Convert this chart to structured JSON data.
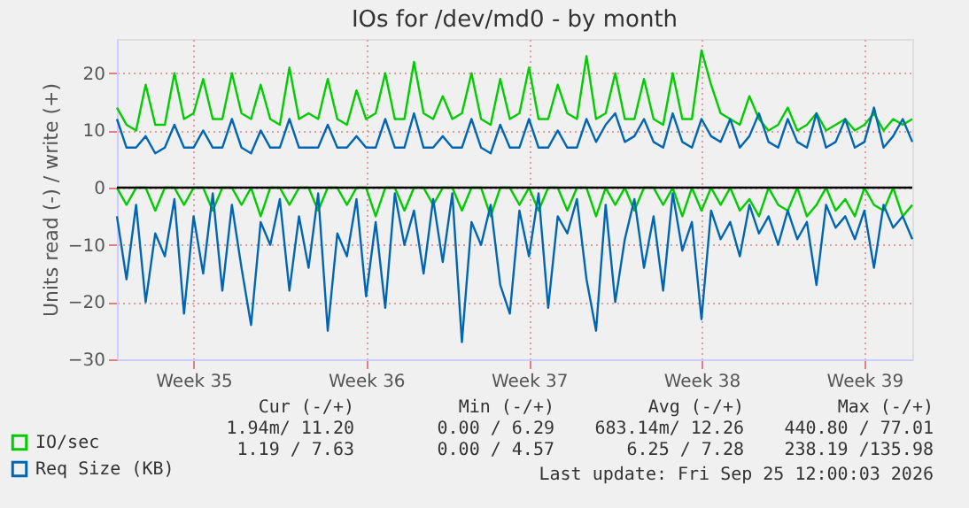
{
  "chart_data": {
    "type": "line",
    "title": "IOs for /dev/md0 - by month",
    "ylabel": "Units read (-) / write (+)",
    "categories": [
      null,
      null,
      null,
      null,
      null,
      null,
      null,
      null,
      "Week 35",
      null,
      null,
      null,
      null,
      null,
      null,
      null,
      null,
      null,
      null,
      null,
      null,
      null,
      null,
      null,
      null,
      null,
      "Week 36",
      null,
      null,
      null,
      null,
      null,
      null,
      null,
      null,
      null,
      null,
      null,
      null,
      null,
      null,
      null,
      null,
      "Week 37",
      null,
      null,
      null,
      null,
      null,
      null,
      null,
      null,
      null,
      null,
      null,
      null,
      null,
      null,
      null,
      null,
      null,
      "Week 38",
      null,
      null,
      null,
      null,
      null,
      null,
      null,
      null,
      null,
      null,
      null,
      null,
      null,
      null,
      null,
      null,
      "Week 39",
      null,
      null,
      null,
      null,
      null
    ],
    "series": [
      {
        "name": "IO/sec",
        "color": "#00cc00",
        "values": [
          14,
          11,
          10,
          18,
          11,
          11,
          20,
          12,
          13,
          19,
          12,
          12,
          20,
          13,
          12,
          18,
          12,
          11,
          21,
          12,
          13,
          12,
          19,
          12,
          11,
          17,
          12,
          13,
          20,
          12,
          12,
          22,
          13,
          12,
          16,
          12,
          13,
          20,
          12,
          11,
          19,
          12,
          13,
          21,
          12,
          12,
          18,
          13,
          12,
          23,
          12,
          13,
          20,
          12,
          12,
          19,
          12,
          11,
          20,
          12,
          12,
          24,
          18,
          13,
          12,
          11,
          16,
          12,
          10,
          11,
          14,
          10,
          11,
          13,
          10,
          11,
          12,
          10,
          11,
          13,
          10,
          12,
          11,
          12
        ]
      },
      {
        "color": "#00cc00",
        "values": [
          0,
          -3,
          0,
          0,
          -4,
          0,
          0,
          -3,
          0,
          0,
          -4,
          0,
          0,
          -3,
          0,
          -5,
          0,
          0,
          -3,
          0,
          0,
          -4,
          0,
          0,
          -3,
          0,
          0,
          -5,
          0,
          0,
          -4,
          0,
          0,
          -3,
          0,
          0,
          -4,
          0,
          0,
          -5,
          0,
          0,
          -3,
          0,
          -4,
          0,
          0,
          -4,
          0,
          0,
          -5,
          0,
          -3,
          0,
          -4,
          0,
          0,
          -3,
          0,
          -5,
          0,
          -4,
          0,
          -3,
          0,
          -4,
          -2,
          -5,
          0,
          -3,
          -4,
          0,
          -5,
          -3,
          0,
          -4,
          -2,
          -5,
          0,
          -3,
          -4,
          0,
          -5,
          -3
        ]
      },
      {
        "name": "Req Size (KB)",
        "color": "#0066b3",
        "values": [
          12,
          7,
          7,
          9,
          6,
          7,
          11,
          7,
          7,
          10,
          7,
          7,
          12,
          7,
          6,
          10,
          7,
          7,
          12,
          7,
          7,
          7,
          11,
          7,
          7,
          9,
          7,
          7,
          12,
          7,
          7,
          13,
          7,
          7,
          9,
          7,
          7,
          12,
          7,
          6,
          11,
          7,
          7,
          12,
          7,
          7,
          10,
          7,
          7,
          12,
          8,
          11,
          13,
          8,
          9,
          12,
          8,
          7,
          13,
          8,
          7,
          12,
          9,
          8,
          12,
          7,
          9,
          13,
          8,
          7,
          12,
          8,
          7,
          13,
          7,
          8,
          12,
          7,
          8,
          14,
          7,
          9,
          12,
          8
        ]
      },
      {
        "color": "#0066b3",
        "values": [
          -5,
          -16,
          -3,
          -20,
          -8,
          -12,
          -2,
          -22,
          -5,
          -15,
          -1,
          -18,
          -3,
          -14,
          -24,
          -6,
          -10,
          -2,
          -18,
          -5,
          -14,
          -1,
          -25,
          -8,
          -12,
          -2,
          -19,
          -6,
          -21,
          -1,
          -10,
          -4,
          -15,
          -2,
          -13,
          -1,
          -27,
          -6,
          -10,
          -3,
          -17,
          -22,
          -4,
          -12,
          -1,
          -21,
          -5,
          -8,
          -2,
          -16,
          -25,
          -3,
          -20,
          -9,
          -2,
          -14,
          -5,
          -18,
          -1,
          -11,
          -6,
          -23,
          -4,
          -9,
          -6,
          -12,
          -3,
          -8,
          -5,
          -10,
          -4,
          -9,
          -6,
          -17,
          -3,
          -7,
          -5,
          -9,
          -4,
          -14,
          -3,
          -7,
          -5,
          -9
        ]
      }
    ],
    "ylim": [
      -30,
      26
    ],
    "yticks": [
      -30,
      -20,
      -10,
      0,
      10,
      20
    ],
    "ref_lines": [
      {
        "axis": "y",
        "value": 0,
        "color": "#000000"
      }
    ],
    "grid": true,
    "legend": "bottom left",
    "annotations": [
      "Cur (-/+)",
      "Min (-/+)",
      "Avg (-/+)",
      "Max (-/+)",
      "1.94m/ 11.20",
      "0.00 /  6.29",
      "683.14m/ 12.26",
      "440.80 / 77.01",
      "1.19 /  7.63",
      "0.00 /  4.57",
      "6.25 /  7.28",
      "238.19 /135.98",
      "Last update: Fri Sep 25 12:00:03 2026"
    ]
  }
}
